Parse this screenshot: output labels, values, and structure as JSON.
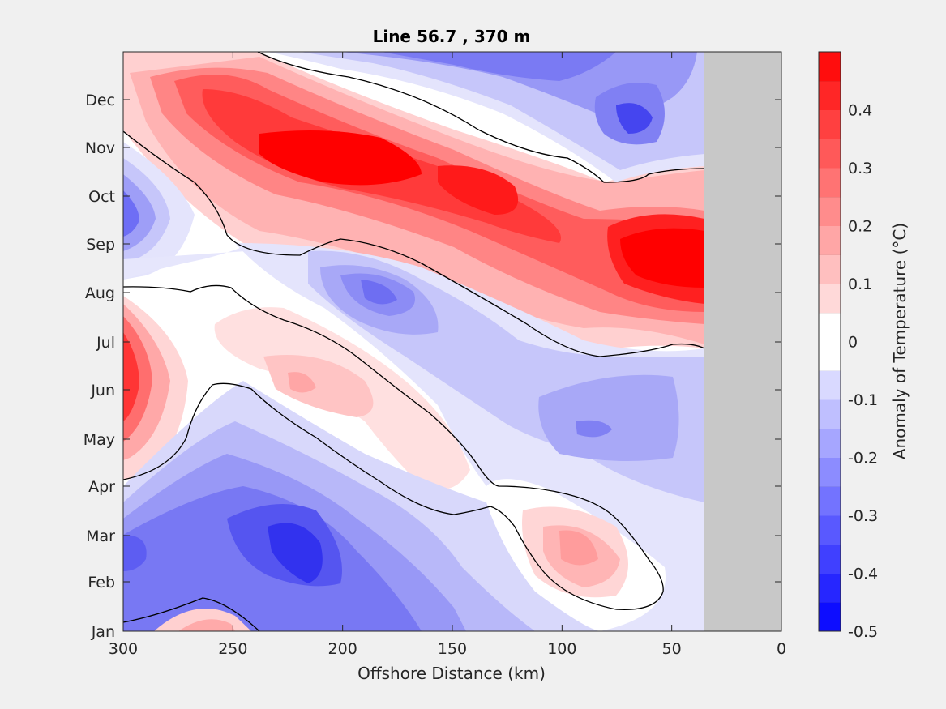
{
  "chart_data": {
    "type": "heatmap",
    "subtype": "filled-contour",
    "title": "Line 56.7 , 370 m",
    "xlabel": "Offshore Distance (km)",
    "ylabel": "",
    "xlim": [
      300,
      0
    ],
    "x_reversed": true,
    "x_ticks": [
      300,
      250,
      200,
      150,
      100,
      50,
      0
    ],
    "y_ticks": [
      "Jan",
      "Feb",
      "Mar",
      "Apr",
      "May",
      "Jun",
      "Jul",
      "Aug",
      "Sep",
      "Oct",
      "Nov",
      "Dec"
    ],
    "no_data_region_km": [
      35,
      0
    ],
    "no_data_color": "#c8c8c8",
    "zero_contour": "black",
    "colorbar": {
      "label": "Anomaly of Temperature (°C)",
      "clim": [
        -0.5,
        0.5
      ],
      "ticks": [
        "-0.5",
        "-0.4",
        "-0.3",
        "-0.2",
        "-0.1",
        "0",
        "0.1",
        "0.2",
        "0.3",
        "0.4"
      ],
      "tick_values": [
        -0.5,
        -0.4,
        -0.3,
        -0.2,
        -0.1,
        0,
        0.1,
        0.2,
        0.3,
        0.4
      ],
      "levels": 20,
      "colormap": "blue-white-red"
    },
    "features": [
      {
        "sign": "positive",
        "km": 200,
        "month": "Nov",
        "peak": 0.45
      },
      {
        "sign": "positive",
        "km": 55,
        "month": "Sep",
        "peak": 0.45
      },
      {
        "sign": "positive",
        "km": 300,
        "month": "Jun",
        "peak": 0.4
      },
      {
        "sign": "positive",
        "km": 215,
        "month": "Jun",
        "peak": 0.15
      },
      {
        "sign": "positive",
        "km": 95,
        "month": "Mar",
        "peak": 0.2
      },
      {
        "sign": "positive",
        "km": 262,
        "month": "Jan",
        "peak": 0.2
      },
      {
        "sign": "negative",
        "km": 215,
        "month": "Mar",
        "peak": -0.42
      },
      {
        "sign": "negative",
        "km": 65,
        "month": "Dec",
        "peak": -0.35
      },
      {
        "sign": "negative",
        "km": 300,
        "month": "Oct",
        "peak": -0.3
      },
      {
        "sign": "negative",
        "km": 185,
        "month": "Aug",
        "peak": -0.3
      },
      {
        "sign": "negative",
        "km": 85,
        "month": "May",
        "peak": -0.22
      }
    ]
  }
}
